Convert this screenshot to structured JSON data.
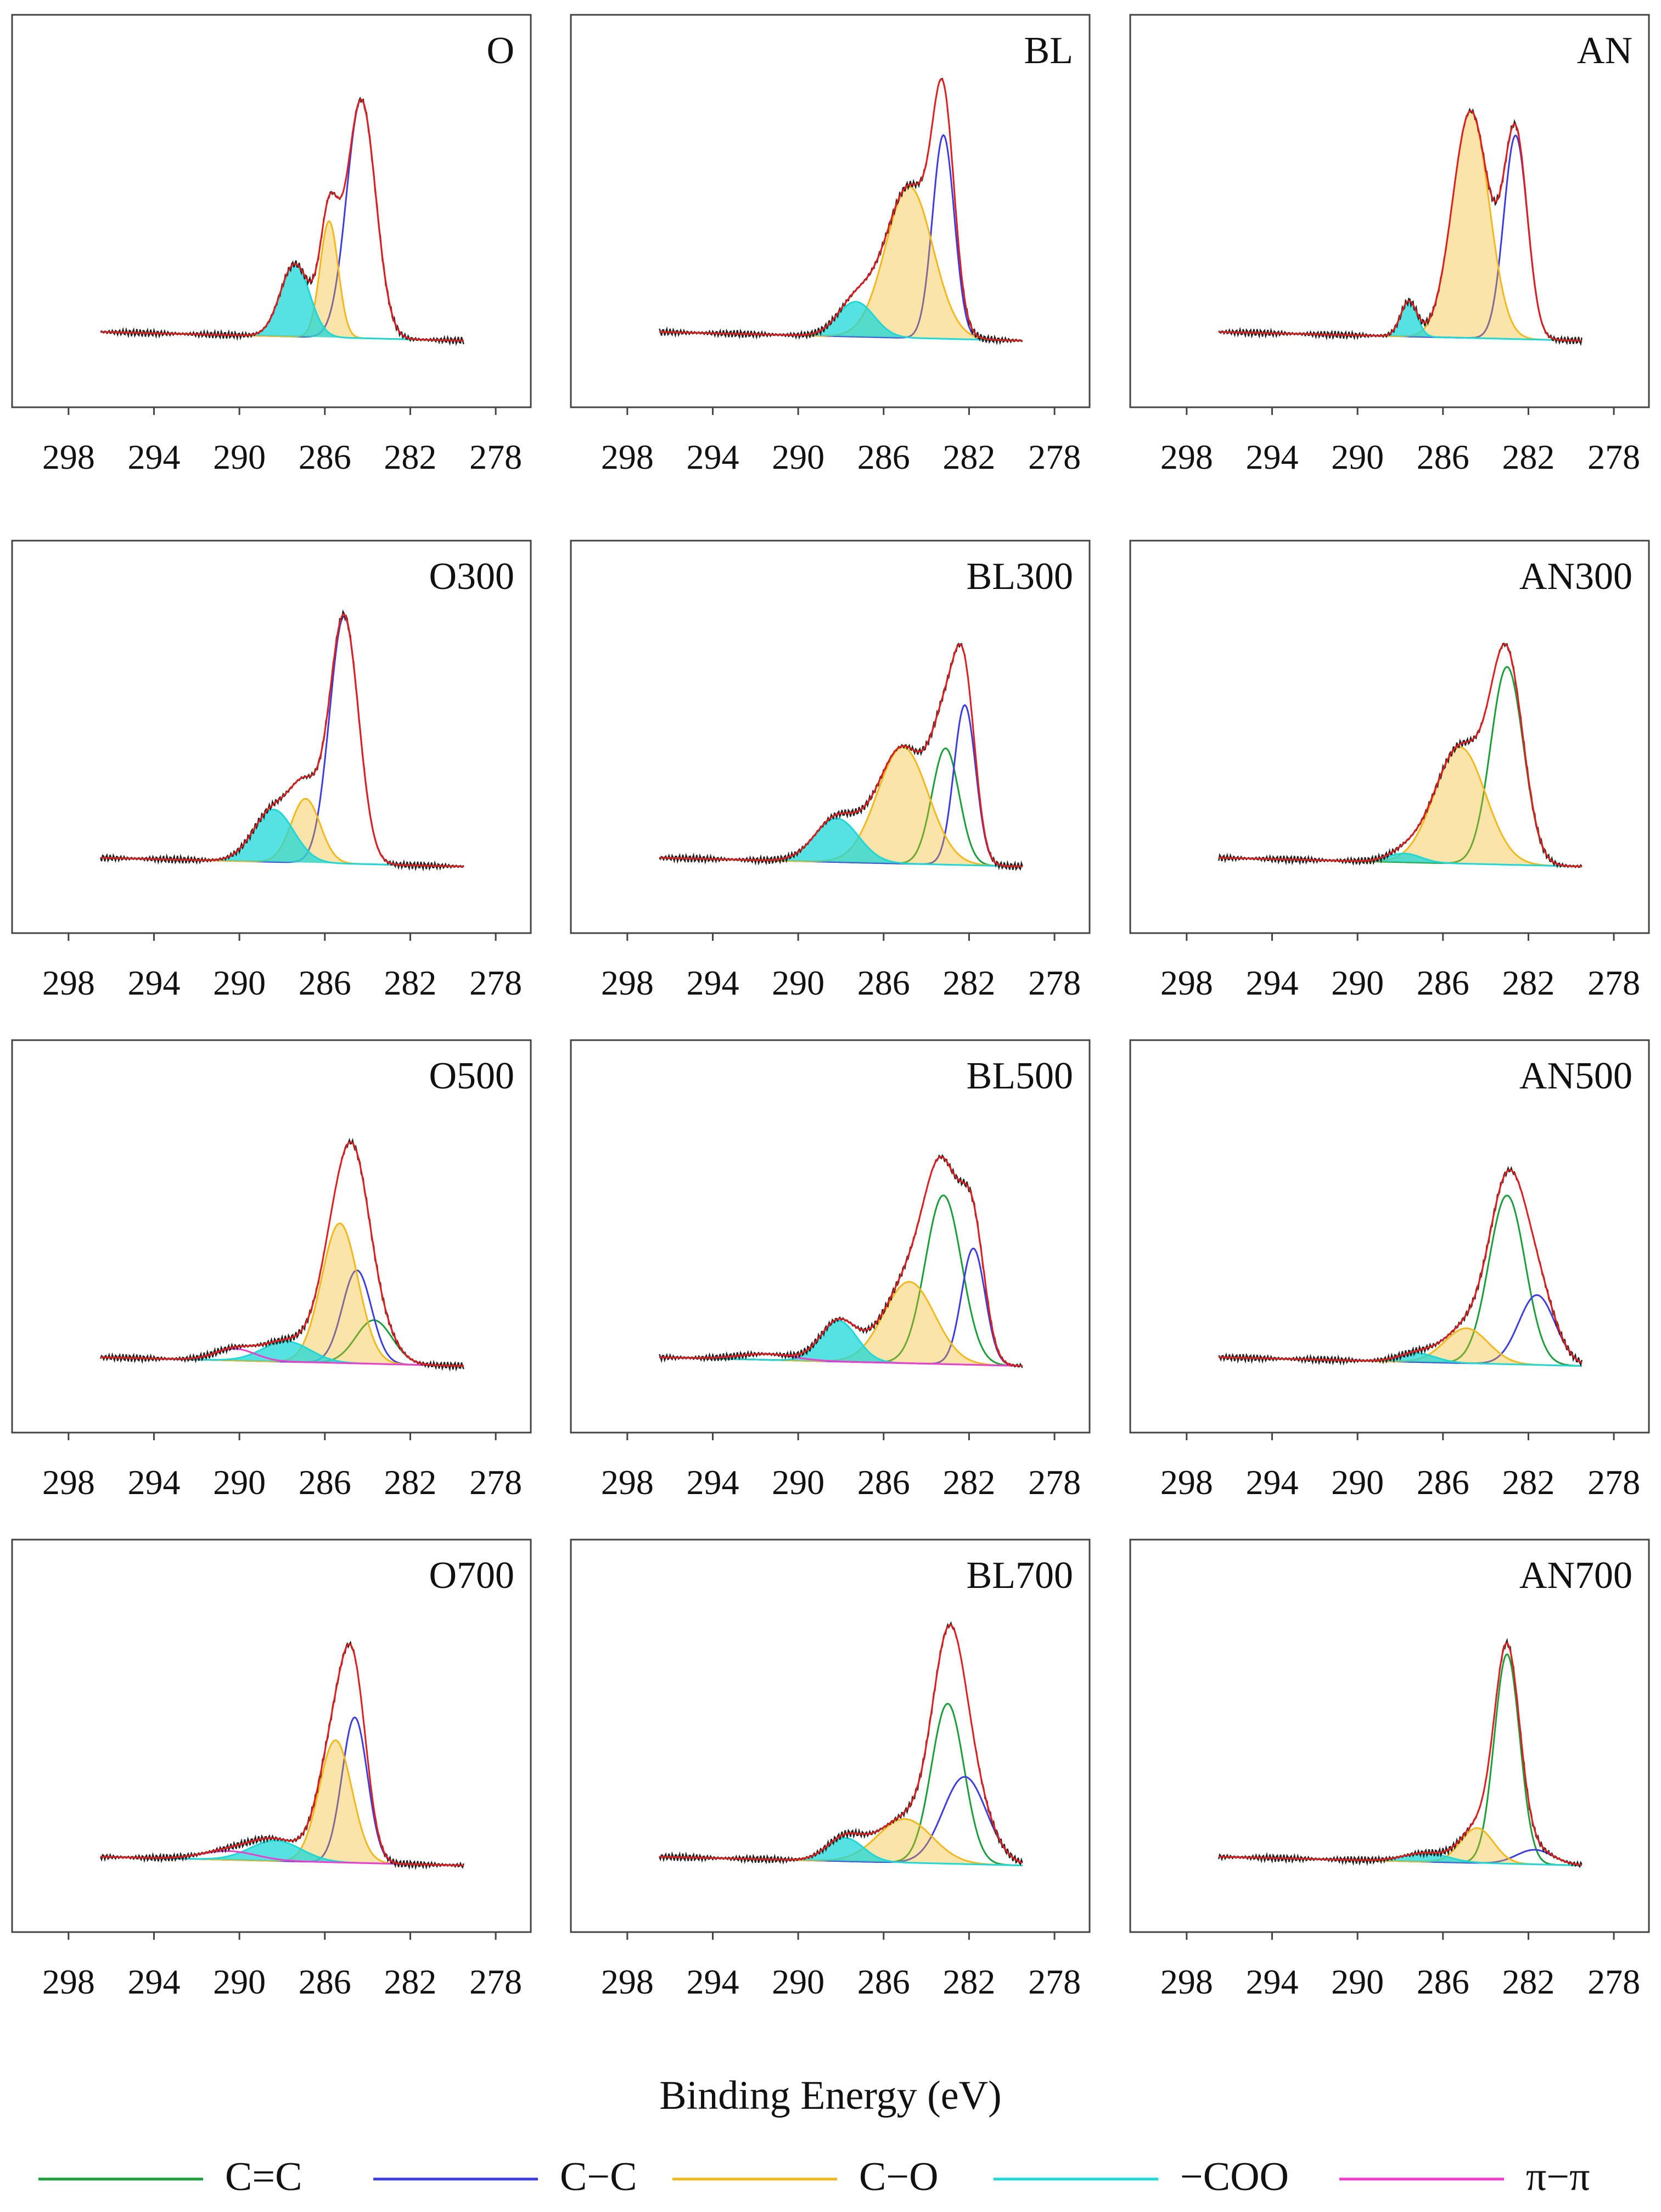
{
  "chart_data": {
    "type": "line",
    "xlabel": "Binding Energy (eV)",
    "xlim": [
      300,
      277
    ],
    "x_ticks": [
      "298",
      "294",
      "290",
      "286",
      "282",
      "278"
    ],
    "components": [
      {
        "name": "C=C",
        "color": "#1a9e3a"
      },
      {
        "name": "C−C",
        "color": "#3c3ce0"
      },
      {
        "name": "C−O",
        "color": "#f2b81e"
      },
      {
        "name": "−COO",
        "color": "#1ed8d8"
      },
      {
        "name": "π−π",
        "color": "#ef3ccf"
      }
    ],
    "panels": [
      {
        "title": "O",
        "peaks": [
          {
            "comp": "C−C",
            "center": 284.3,
            "height": 0.82,
            "fwhm": 1.6
          },
          {
            "comp": "C−O",
            "center": 285.8,
            "height": 0.4,
            "fwhm": 1.0
          },
          {
            "comp": "−COO",
            "center": 287.4,
            "height": 0.25,
            "fwhm": 1.6
          }
        ]
      },
      {
        "title": "BL",
        "peaks": [
          {
            "comp": "C−C",
            "center": 283.2,
            "height": 0.7,
            "fwhm": 1.2
          },
          {
            "comp": "C−O",
            "center": 284.8,
            "height": 0.52,
            "fwhm": 2.6
          },
          {
            "comp": "−COO",
            "center": 287.3,
            "height": 0.12,
            "fwhm": 2.0
          }
        ]
      },
      {
        "title": "AN",
        "peaks": [
          {
            "comp": "C−C",
            "center": 282.6,
            "height": 0.7,
            "fwhm": 1.3
          },
          {
            "comp": "C−O",
            "center": 284.7,
            "height": 0.78,
            "fwhm": 2.0
          },
          {
            "comp": "−COO",
            "center": 287.6,
            "height": 0.12,
            "fwhm": 0.9
          }
        ]
      },
      {
        "title": "O300",
        "peaks": [
          {
            "comp": "C−C",
            "center": 285.1,
            "height": 0.85,
            "fwhm": 1.6
          },
          {
            "comp": "C−O",
            "center": 286.9,
            "height": 0.22,
            "fwhm": 1.6
          },
          {
            "comp": "−COO",
            "center": 288.4,
            "height": 0.18,
            "fwhm": 2.2
          }
        ]
      },
      {
        "title": "BL300",
        "peaks": [
          {
            "comp": "C=C",
            "center": 283.1,
            "height": 0.4,
            "fwhm": 1.5
          },
          {
            "comp": "C−C",
            "center": 282.2,
            "height": 0.55,
            "fwhm": 1.2
          },
          {
            "comp": "C−O",
            "center": 285.1,
            "height": 0.4,
            "fwhm": 2.8
          },
          {
            "comp": "−COO",
            "center": 288.2,
            "height": 0.15,
            "fwhm": 2.4
          }
        ]
      },
      {
        "title": "AN300",
        "peaks": [
          {
            "comp": "C=C",
            "center": 283.0,
            "height": 0.68,
            "fwhm": 1.8
          },
          {
            "comp": "C−O",
            "center": 285.2,
            "height": 0.4,
            "fwhm": 2.8
          },
          {
            "comp": "−COO",
            "center": 287.8,
            "height": 0.03,
            "fwhm": 1.8
          }
        ]
      },
      {
        "title": "O500",
        "peaks": [
          {
            "comp": "C=C",
            "center": 283.7,
            "height": 0.15,
            "fwhm": 2.0
          },
          {
            "comp": "C−C",
            "center": 284.5,
            "height": 0.32,
            "fwhm": 1.6
          },
          {
            "comp": "C−O",
            "center": 285.3,
            "height": 0.48,
            "fwhm": 2.0
          },
          {
            "comp": "−COO",
            "center": 287.8,
            "height": 0.07,
            "fwhm": 2.6
          },
          {
            "comp": "π−π",
            "center": 290.2,
            "height": 0.04,
            "fwhm": 2.2
          }
        ]
      },
      {
        "title": "BL500",
        "peaks": [
          {
            "comp": "C=C",
            "center": 283.2,
            "height": 0.58,
            "fwhm": 2.0
          },
          {
            "comp": "C−C",
            "center": 281.8,
            "height": 0.4,
            "fwhm": 1.3
          },
          {
            "comp": "C−O",
            "center": 284.8,
            "height": 0.28,
            "fwhm": 2.8
          },
          {
            "comp": "−COO",
            "center": 288.1,
            "height": 0.14,
            "fwhm": 2.0
          },
          {
            "comp": "π−π",
            "center": 291.5,
            "height": 0.02,
            "fwhm": 3.0
          }
        ]
      },
      {
        "title": "AN500",
        "peaks": [
          {
            "comp": "C=C",
            "center": 283.0,
            "height": 0.58,
            "fwhm": 2.0
          },
          {
            "comp": "C−C",
            "center": 281.6,
            "height": 0.24,
            "fwhm": 2.0
          },
          {
            "comp": "C−O",
            "center": 284.9,
            "height": 0.12,
            "fwhm": 2.4
          },
          {
            "comp": "−COO",
            "center": 287.2,
            "height": 0.03,
            "fwhm": 2.0
          }
        ]
      },
      {
        "title": "O700",
        "peaks": [
          {
            "comp": "C−C",
            "center": 284.6,
            "height": 0.5,
            "fwhm": 1.4
          },
          {
            "comp": "C−O",
            "center": 285.5,
            "height": 0.42,
            "fwhm": 1.8
          },
          {
            "comp": "−COO",
            "center": 288.3,
            "height": 0.07,
            "fwhm": 2.8
          },
          {
            "comp": "π−π",
            "center": 290.5,
            "height": 0.03,
            "fwhm": 3.0
          }
        ]
      },
      {
        "title": "BL700",
        "peaks": [
          {
            "comp": "C=C",
            "center": 283.0,
            "height": 0.55,
            "fwhm": 1.8
          },
          {
            "comp": "C−C",
            "center": 282.2,
            "height": 0.3,
            "fwhm": 2.4
          },
          {
            "comp": "C−O",
            "center": 285.0,
            "height": 0.15,
            "fwhm": 3.0
          },
          {
            "comp": "−COO",
            "center": 287.8,
            "height": 0.08,
            "fwhm": 2.0
          }
        ]
      },
      {
        "title": "AN700",
        "peaks": [
          {
            "comp": "C=C",
            "center": 283.0,
            "height": 0.72,
            "fwhm": 1.4
          },
          {
            "comp": "C−C",
            "center": 281.7,
            "height": 0.05,
            "fwhm": 2.0
          },
          {
            "comp": "C−O",
            "center": 284.4,
            "height": 0.12,
            "fwhm": 1.8
          },
          {
            "comp": "−COO",
            "center": 286.8,
            "height": 0.03,
            "fwhm": 2.4
          }
        ]
      }
    ]
  }
}
